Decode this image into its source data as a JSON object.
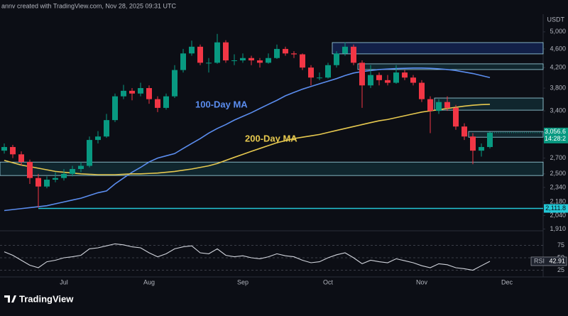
{
  "chart_data": {
    "type": "candlestick",
    "watermark": "annv created with TradingView.com, Nov 28, 2025 09:31 UTC",
    "currency": "USDT",
    "brand": "TradingView",
    "log_scale": true,
    "categories": [
      null,
      null,
      null,
      null,
      null,
      null,
      null,
      "Jul",
      null,
      null,
      null,
      null,
      null,
      null,
      null,
      null,
      null,
      "Aug",
      null,
      null,
      null,
      null,
      null,
      null,
      null,
      null,
      null,
      null,
      "Sep",
      null,
      null,
      null,
      null,
      null,
      null,
      null,
      null,
      null,
      "Oct",
      null,
      null,
      null,
      null,
      null,
      null,
      null,
      null,
      null,
      null,
      "Nov",
      null,
      null,
      null,
      null,
      null,
      null,
      null,
      null,
      null,
      "Dec"
    ],
    "open": [
      2800,
      2850,
      2750,
      2650,
      2450,
      2350,
      2430,
      2450,
      2500,
      2560,
      2600,
      2950,
      3000,
      3250,
      3650,
      3750,
      3700,
      3800,
      3600,
      3450,
      3650,
      4150,
      4500,
      4650,
      4300,
      4300,
      4750,
      4350,
      4350,
      4400,
      4350,
      4300,
      4400,
      4600,
      4500,
      4480,
      4200,
      4000,
      4000,
      4250,
      4500,
      4650,
      4300,
      3850,
      4050,
      3950,
      3900,
      4100,
      4000,
      3900,
      3600,
      3400,
      3550,
      3450,
      3150,
      3000,
      2800,
      2850,
      null,
      null
    ],
    "high": [
      2900,
      2880,
      2790,
      2680,
      2500,
      2470,
      2520,
      2560,
      2600,
      2650,
      3000,
      3080,
      3350,
      3700,
      3860,
      3800,
      3900,
      3850,
      3650,
      3700,
      4250,
      4600,
      4790,
      4700,
      4400,
      4950,
      4800,
      4480,
      4500,
      4450,
      4400,
      4500,
      4700,
      4650,
      4550,
      4500,
      4250,
      4100,
      4300,
      4550,
      4750,
      4700,
      4350,
      4250,
      4100,
      4050,
      4250,
      4150,
      4050,
      3950,
      3650,
      3600,
      3650,
      3500,
      3200,
      3050,
      2900,
      3070,
      null,
      null
    ],
    "low": [
      2760,
      2700,
      2600,
      2380,
      2120,
      2330,
      2400,
      2420,
      2470,
      2520,
      2580,
      2900,
      2980,
      3220,
      3600,
      3580,
      3650,
      3520,
      3380,
      3420,
      3620,
      4100,
      4450,
      4250,
      4100,
      4280,
      4300,
      4250,
      4300,
      4250,
      4200,
      4280,
      4380,
      4450,
      4400,
      4150,
      3850,
      3950,
      3980,
      4200,
      4450,
      4250,
      3450,
      3800,
      3850,
      3850,
      3880,
      3950,
      3850,
      3550,
      3050,
      3350,
      3400,
      3100,
      2950,
      2620,
      2720,
      2830,
      null,
      null
    ],
    "close": [
      2850,
      2750,
      2650,
      2450,
      2350,
      2430,
      2450,
      2500,
      2560,
      2600,
      2950,
      3000,
      3250,
      3650,
      3750,
      3700,
      3800,
      3600,
      3450,
      3650,
      4150,
      4500,
      4650,
      4300,
      4300,
      4750,
      4350,
      4350,
      4400,
      4350,
      4300,
      4400,
      4600,
      4500,
      4480,
      4200,
      4000,
      4000,
      4250,
      4500,
      4650,
      4300,
      3850,
      4050,
      3950,
      3900,
      4100,
      4000,
      3900,
      3600,
      3400,
      3550,
      3450,
      3150,
      3000,
      2800,
      2850,
      3056.6,
      null,
      null
    ],
    "up_color": "#089981",
    "down_color": "#f23645",
    "ylim": [
      1940,
      5450
    ],
    "yticks": [
      {
        "value": 5000,
        "label": "5,000"
      },
      {
        "value": 4600,
        "label": "4,600"
      },
      {
        "value": 4200,
        "label": "4,200"
      },
      {
        "value": 3800,
        "label": "3,800"
      },
      {
        "value": 3400,
        "label": "3,400"
      },
      {
        "value": 2700,
        "label": "2,700"
      },
      {
        "value": 2500,
        "label": "2,500"
      },
      {
        "value": 2340,
        "label": "2,340"
      },
      {
        "value": 2180,
        "label": "2,180"
      },
      {
        "value": 2040,
        "label": "2,040"
      },
      {
        "value": 1910,
        "label": "1,910"
      }
    ],
    "series": [
      {
        "name": "100-Day MA",
        "color": "#5b8def",
        "values": [
          2090,
          2100,
          2110,
          2120,
          2130,
          2140,
          2160,
          2180,
          2200,
          2220,
          2250,
          2280,
          2300,
          2380,
          2450,
          2520,
          2580,
          2650,
          2700,
          2730,
          2760,
          2830,
          2900,
          2970,
          3050,
          3120,
          3180,
          3250,
          3310,
          3370,
          3440,
          3510,
          3580,
          3660,
          3720,
          3780,
          3830,
          3880,
          3930,
          3980,
          4040,
          4090,
          4120,
          4140,
          4160,
          4170,
          4180,
          4185,
          4190,
          4190,
          4185,
          4175,
          4160,
          4140,
          4110,
          4080,
          4040,
          4000,
          null,
          null
        ]
      },
      {
        "name": "200-Day MA",
        "color": "#e6c84f",
        "values": [
          2670,
          2640,
          2610,
          2590,
          2570,
          2550,
          2530,
          2520,
          2510,
          2500,
          2495,
          2490,
          2490,
          2490,
          2495,
          2500,
          2500,
          2505,
          2510,
          2520,
          2530,
          2545,
          2560,
          2580,
          2600,
          2630,
          2670,
          2710,
          2750,
          2790,
          2830,
          2870,
          2910,
          2940,
          2970,
          2990,
          3010,
          3030,
          3060,
          3090,
          3120,
          3150,
          3180,
          3210,
          3240,
          3260,
          3290,
          3320,
          3350,
          3380,
          3400,
          3420,
          3440,
          3460,
          3480,
          3495,
          3505,
          3510,
          null,
          null
        ]
      }
    ],
    "zones": [
      {
        "from": 39,
        "low": 4490,
        "high": 4745
      },
      {
        "from": 42,
        "low": 4160,
        "high": 4277
      },
      {
        "from": 51,
        "low": 3412,
        "high": 3620
      },
      {
        "from": 55,
        "low": 2990,
        "high": 3075
      },
      {
        "from": 0,
        "low": 2480,
        "high": 2648
      }
    ],
    "levels": [
      {
        "value": 2111.8,
        "label": "2,111.8",
        "from": 4
      }
    ],
    "last_price": {
      "value": 3056.6,
      "label": "3,056.6"
    },
    "countdown": "14:28:2",
    "rsi": {
      "name": "RSI",
      "color": "#d1d4dc",
      "ylim": [
        0,
        100
      ],
      "yticks": [
        25,
        50,
        75
      ],
      "values": [
        62,
        55,
        45,
        35,
        30,
        42,
        45,
        50,
        52,
        55,
        68,
        70,
        74,
        78,
        76,
        72,
        70,
        60,
        52,
        58,
        68,
        72,
        74,
        60,
        58,
        68,
        55,
        52,
        54,
        50,
        48,
        52,
        58,
        54,
        52,
        45,
        40,
        42,
        50,
        56,
        60,
        50,
        38,
        45,
        42,
        40,
        48,
        44,
        40,
        34,
        30,
        38,
        36,
        30,
        28,
        25,
        34,
        42.91,
        null,
        null
      ]
    }
  }
}
